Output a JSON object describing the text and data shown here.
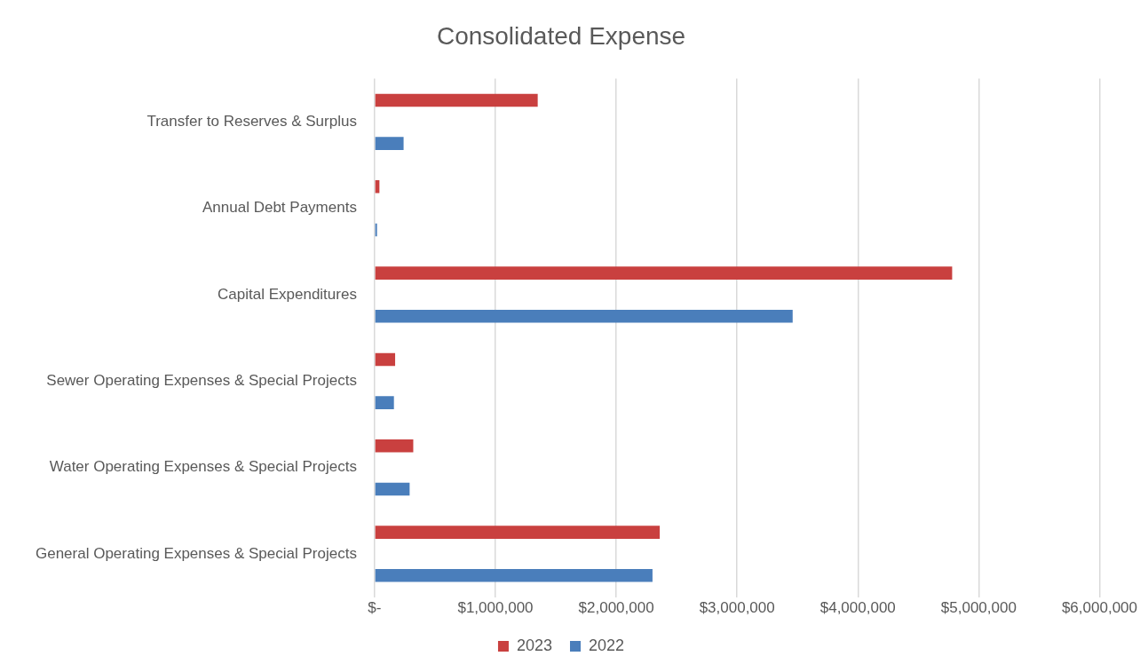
{
  "chart_data": {
    "type": "bar",
    "orientation": "horizontal",
    "title": "Consolidated Expense",
    "categories": [
      "Transfer to Reserves & Surplus",
      "Annual Debt Payments",
      "Capital Expenditures",
      "Sewer Operating Expenses & Special Projects",
      "Water Operating Expenses & Special Projects",
      "General Operating Expenses & Special Projects"
    ],
    "series": [
      {
        "name": "2023",
        "color": "#c9403f",
        "values": [
          1350000,
          40000,
          4780000,
          170000,
          320000,
          2360000
        ]
      },
      {
        "name": "2022",
        "color": "#4a7ebb",
        "values": [
          240000,
          20000,
          3460000,
          160000,
          290000,
          2300000
        ]
      }
    ],
    "xlim": [
      0,
      6000000
    ],
    "xticks": [
      {
        "value": 0,
        "label": "$-"
      },
      {
        "value": 1000000,
        "label": "$1,000,000"
      },
      {
        "value": 2000000,
        "label": "$2,000,000"
      },
      {
        "value": 3000000,
        "label": "$3,000,000"
      },
      {
        "value": 4000000,
        "label": "$4,000,000"
      },
      {
        "value": 5000000,
        "label": "$5,000,000"
      },
      {
        "value": 6000000,
        "label": "$6,000,000"
      }
    ],
    "grid": "x",
    "legend": "bottom"
  }
}
